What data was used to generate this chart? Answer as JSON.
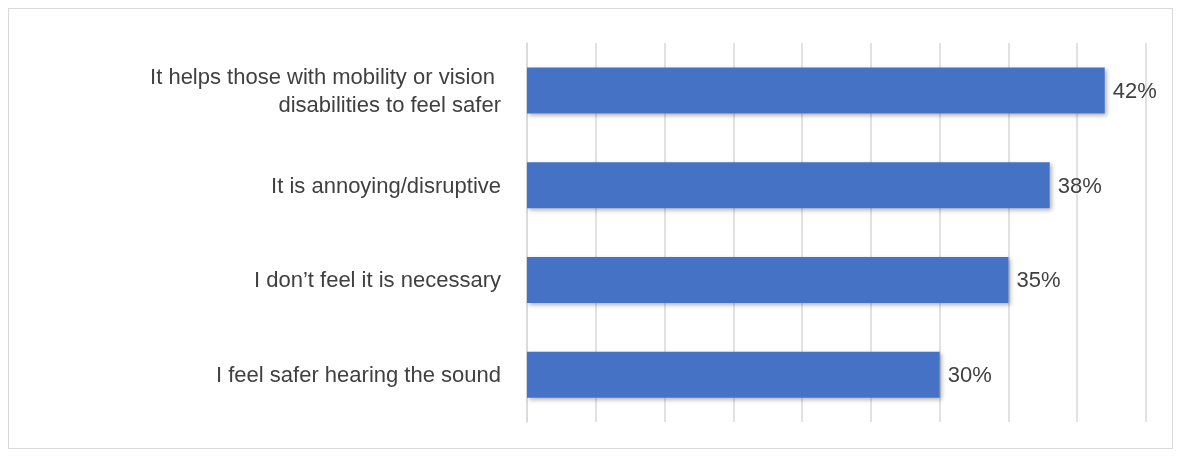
{
  "chart_data": {
    "type": "bar",
    "orientation": "horizontal",
    "categories": [
      "It helps those with mobility or vision disabilities to feel safer",
      "It is annoying/disruptive",
      "I don’t feel it is necessary",
      "I feel safer hearing the sound"
    ],
    "values": [
      42,
      38,
      35,
      30
    ],
    "value_labels": [
      "42%",
      "38%",
      "35%",
      "30%"
    ],
    "color": "#4472c4",
    "xlim": [
      0,
      45
    ],
    "xticks": [
      {
        "value": 0,
        "label": null
      },
      {
        "value": 5,
        "label": null
      },
      {
        "value": 10,
        "label": null
      },
      {
        "value": 15,
        "label": null
      },
      {
        "value": 20,
        "label": null
      },
      {
        "value": 25,
        "label": null
      },
      {
        "value": 30,
        "label": null
      },
      {
        "value": 35,
        "label": null
      },
      {
        "value": 40,
        "label": null
      },
      {
        "value": 45,
        "label": null
      }
    ],
    "grid": "x",
    "tick_labels": "y"
  }
}
